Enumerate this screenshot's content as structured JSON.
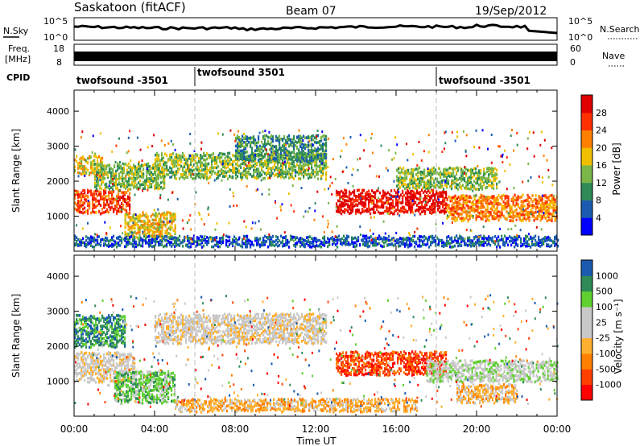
{
  "header": {
    "station": "Saskatoon (fitACF)",
    "beam": "Beam 07",
    "date": "19/Sep/2012"
  },
  "nsky": {
    "label": "N.Sky",
    "tick_top": "10^5",
    "tick_bottom": "10^0",
    "right_label": "N.Search",
    "right_tick_top": "10^5",
    "right_tick_bottom": "10^0"
  },
  "freq": {
    "label_line1": "Freq.",
    "label_line2": "[MHz]",
    "tick_top": "18",
    "tick_bottom": "8",
    "right_label": "Nave",
    "right_tick_top": "60",
    "right_tick_bottom": "0"
  },
  "cpid": {
    "label": "CPID",
    "segments": [
      {
        "name": "twofsound -3501",
        "start_hour": 0
      },
      {
        "name": "twofsound 3501",
        "start_hour": 6
      },
      {
        "name": "twofsound -3501",
        "start_hour": 18
      }
    ]
  },
  "chart_data": [
    {
      "type": "heatmap",
      "panel": "power",
      "ylabel": "Slant Range [km]",
      "ylim": [
        0,
        4600
      ],
      "yticks": [
        1000,
        2000,
        3000,
        4000
      ],
      "xlim_hours": [
        0,
        24
      ],
      "colorbar_label": "Power [dB]",
      "colorbar_ticks": [
        "28",
        "24",
        "20",
        "16",
        "12",
        "8",
        "4"
      ],
      "colors": [
        "#0000ff",
        "#1a5bb0",
        "#2e8b57",
        "#7ab648",
        "#f0c000",
        "#ff8000",
        "#ff3000",
        "#e00000"
      ],
      "bands": [
        {
          "h0": 0.0,
          "h1": 2.8,
          "r0": 1100,
          "r1": 1750,
          "level": 6
        },
        {
          "h0": 0.0,
          "h1": 1.5,
          "r0": 2200,
          "r1": 2700,
          "level": 4
        },
        {
          "h0": 1.0,
          "h1": 4.5,
          "r0": 1800,
          "r1": 2500,
          "level": 3
        },
        {
          "h0": 2.5,
          "h1": 5.0,
          "r0": 400,
          "r1": 1100,
          "level": 4
        },
        {
          "h0": 4.0,
          "h1": 12.5,
          "r0": 2100,
          "r1": 2800,
          "level": 3
        },
        {
          "h0": 8.0,
          "h1": 12.5,
          "r0": 2600,
          "r1": 3300,
          "level": 2
        },
        {
          "h0": 13.0,
          "h1": 18.5,
          "r0": 1100,
          "r1": 1750,
          "level": 7
        },
        {
          "h0": 18.5,
          "h1": 24.0,
          "r0": 900,
          "r1": 1600,
          "level": 5
        },
        {
          "h0": 16.0,
          "h1": 21.0,
          "r0": 1800,
          "r1": 2400,
          "level": 3
        },
        {
          "h0": 0.0,
          "h1": 24.0,
          "r0": 150,
          "r1": 450,
          "level": 1
        }
      ]
    },
    {
      "type": "heatmap",
      "panel": "velocity",
      "xlabel": "Time UT",
      "ylabel": "Slant Range [km]",
      "ylim": [
        0,
        4600
      ],
      "yticks": [
        1000,
        2000,
        3000,
        4000
      ],
      "xlim_hours": [
        0,
        24
      ],
      "xticks": [
        "00:00",
        "04:00",
        "08:00",
        "12:00",
        "16:00",
        "20:00",
        "00:00"
      ],
      "colorbar_label": "Velocity [m s⁻¹]",
      "colorbar_ticks": [
        "1000",
        "500",
        "100",
        "25",
        "-25",
        "-100",
        "-500",
        "-1000"
      ],
      "colors": [
        "#ff0000",
        "#ff4000",
        "#ff8000",
        "#ffb030",
        "#c8c8c8",
        "#c8c8c8",
        "#60d030",
        "#2e8b57",
        "#1a5bb0"
      ],
      "bands": [
        {
          "h0": 0.0,
          "h1": 3.0,
          "r0": 1000,
          "r1": 1800,
          "level": 4
        },
        {
          "h0": 0.0,
          "h1": 2.5,
          "r0": 2000,
          "r1": 2900,
          "level": 7
        },
        {
          "h0": 2.0,
          "h1": 5.0,
          "r0": 400,
          "r1": 1300,
          "level": 6
        },
        {
          "h0": 4.0,
          "h1": 12.5,
          "r0": 2100,
          "r1": 2900,
          "level": 4
        },
        {
          "h0": 13.0,
          "h1": 18.5,
          "r0": 1200,
          "r1": 1850,
          "level": 1
        },
        {
          "h0": 17.5,
          "h1": 24.0,
          "r0": 1000,
          "r1": 1600,
          "level": 5
        },
        {
          "h0": 19.0,
          "h1": 22.0,
          "r0": 400,
          "r1": 900,
          "level": 3
        },
        {
          "h0": 5.0,
          "h1": 17.0,
          "r0": 150,
          "r1": 500,
          "level": 3
        }
      ]
    }
  ]
}
